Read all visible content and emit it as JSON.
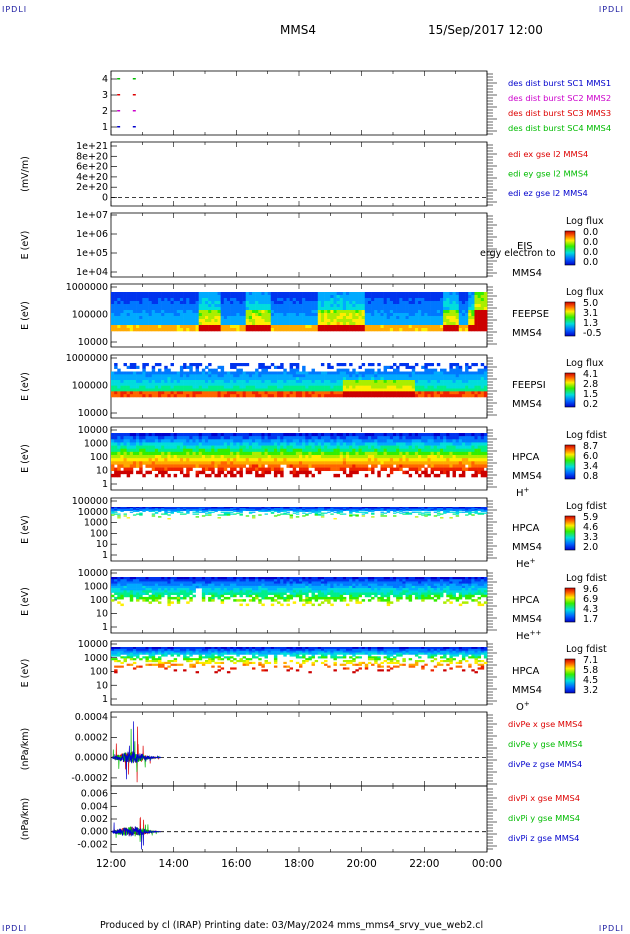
{
  "corners": {
    "tl": "IPDLI",
    "tr": "IPDLI",
    "bl": "IPDLI",
    "br": "IPDLI"
  },
  "header": {
    "spacecraft": "MMS4",
    "datetime": "15/Sep/2017 12:00"
  },
  "footer": {
    "text": "Produced by cl (IRAP)   Printing date: 03/May/2024   mms_mms4_srvy_vue_web2.cl"
  },
  "time_axis": {
    "ticks": [
      "12:00",
      "14:00",
      "16:00",
      "18:00",
      "20:00",
      "22:00",
      "00:00"
    ],
    "start_hours": 12,
    "span_hours": 12
  },
  "colors": {
    "red": "#dd0000",
    "green": "#00bb00",
    "blue": "#0000cc",
    "magenta": "#cc00cc"
  },
  "chart_data": [
    {
      "id": "des",
      "type": "scatter",
      "yticks": [
        "4",
        "3",
        "2",
        "1"
      ],
      "ylim": [
        0.5,
        4.5
      ],
      "legend": [
        {
          "text": "des dist burst SC1 MMS1",
          "color": "#0000cc"
        },
        {
          "text": "des dist burst SC2 MMS2",
          "color": "#cc00cc"
        },
        {
          "text": "des dist burst SC3 MMS3",
          "color": "#dd0000"
        },
        {
          "text": "des dist burst SC4 MMS4",
          "color": "#00bb00"
        }
      ],
      "series": [
        {
          "x": [
            12.1,
            12.6
          ],
          "y": [
            4,
            4
          ],
          "color": "#00bb00"
        },
        {
          "x": [
            12.1,
            12.6
          ],
          "y": [
            3,
            3
          ],
          "color": "#dd0000"
        },
        {
          "x": [
            12.1,
            12.6
          ],
          "y": [
            2,
            2
          ],
          "color": "#cc00cc"
        },
        {
          "x": [
            12.1,
            12.6
          ],
          "y": [
            1,
            1
          ],
          "color": "#0000cc"
        }
      ]
    },
    {
      "id": "edi",
      "type": "line",
      "ylabel": "(mV/m)",
      "yticks": [
        "1e+21",
        "8e+20",
        "6e+20",
        "4e+20",
        "2e+20",
        "0"
      ],
      "legend": [
        {
          "text": "edi ex gse l2 MMS4",
          "color": "#dd0000"
        },
        {
          "text": "edi ey gse l2 MMS4",
          "color": "#00bb00"
        },
        {
          "text": "edi ez gse l2 MMS4",
          "color": "#0000cc"
        }
      ]
    },
    {
      "id": "eis",
      "type": "heatmap",
      "ylabel": "E (eV)",
      "yticks": [
        "1e+07",
        "1e+06",
        "1e+05",
        "1e+04"
      ],
      "label1": "EIS",
      "label2": "MMS4",
      "overlay": "ergy electron to",
      "colorbar": {
        "title": "Log flux",
        "ticks": [
          "0.0",
          "0.0",
          "0.0",
          "0.0"
        ]
      }
    },
    {
      "id": "feepse",
      "type": "heatmap",
      "ylabel": "E (eV)",
      "yticks": [
        "1000000",
        "100000",
        "10000"
      ],
      "label1": "FEEPSE",
      "label2": "MMS4",
      "colorbar": {
        "title": "Log flux",
        "ticks": [
          "5.0",
          "3.1",
          "1.3",
          "-0.5"
        ]
      }
    },
    {
      "id": "feepsi",
      "type": "heatmap",
      "ylabel": "E (eV)",
      "yticks": [
        "1000000",
        "100000",
        "10000"
      ],
      "label1": "FEEPSI",
      "label2": "MMS4",
      "colorbar": {
        "title": "Log flux",
        "ticks": [
          "4.1",
          "2.8",
          "1.5",
          "0.2"
        ]
      }
    },
    {
      "id": "hpca_h",
      "type": "heatmap",
      "ylabel": "E (eV)",
      "yticks": [
        "10000",
        "1000",
        "100",
        "10",
        "1"
      ],
      "label1": "HPCA",
      "label2": "MMS4",
      "species": "H",
      "charge": "+",
      "colorbar": {
        "title": "Log fdist",
        "ticks": [
          "8.7",
          "6.0",
          "3.4",
          "0.8"
        ]
      }
    },
    {
      "id": "hpca_he",
      "type": "heatmap",
      "ylabel": "E (eV)",
      "yticks": [
        "100000",
        "10000",
        "1000",
        "100",
        "10",
        "1"
      ],
      "label1": "HPCA",
      "label2": "MMS4",
      "species": "He",
      "charge": "+",
      "colorbar": {
        "title": "Log fdist",
        "ticks": [
          "5.9",
          "4.6",
          "3.3",
          "2.0"
        ]
      }
    },
    {
      "id": "hpca_hepp",
      "type": "heatmap",
      "ylabel": "E (eV)",
      "yticks": [
        "10000",
        "1000",
        "100",
        "10",
        "1"
      ],
      "label1": "HPCA",
      "label2": "MMS4",
      "species": "He",
      "charge": "++",
      "colorbar": {
        "title": "Log fdist",
        "ticks": [
          "9.6",
          "6.9",
          "4.3",
          "1.7"
        ]
      }
    },
    {
      "id": "hpca_o",
      "type": "heatmap",
      "ylabel": "E (eV)",
      "yticks": [
        "10000",
        "1000",
        "100",
        "10",
        "1"
      ],
      "label1": "HPCA",
      "label2": "MMS4",
      "species": "O",
      "charge": "+",
      "colorbar": {
        "title": "Log fdist",
        "ticks": [
          "7.1",
          "5.8",
          "4.5",
          "3.2"
        ]
      }
    },
    {
      "id": "divpe",
      "type": "line",
      "ylabel": "(nPa/km)",
      "yticks": [
        "0.0004",
        "0.0002",
        "0.0000",
        "-0.0002"
      ],
      "ylim": [
        -0.00028,
        0.00045
      ],
      "legend": [
        {
          "text": "divPe x gse MMS4",
          "color": "#dd0000"
        },
        {
          "text": "divPe y gse MMS4",
          "color": "#00bb00"
        },
        {
          "text": "divPe z gse MMS4",
          "color": "#0000cc"
        }
      ],
      "data_range_hours": [
        12.05,
        13.6
      ]
    },
    {
      "id": "divpi",
      "type": "line",
      "ylabel": "(nPa/km)",
      "yticks": [
        "0.006",
        "0.004",
        "0.002",
        "0.000",
        "-0.002"
      ],
      "ylim": [
        -0.0032,
        0.0072
      ],
      "legend": [
        {
          "text": "divPi x gse MMS4",
          "color": "#dd0000"
        },
        {
          "text": "divPi y gse MMS4",
          "color": "#00bb00"
        },
        {
          "text": "divPi z gse MMS4",
          "color": "#0000cc"
        }
      ],
      "data_range_hours": [
        12.05,
        13.6
      ]
    }
  ]
}
